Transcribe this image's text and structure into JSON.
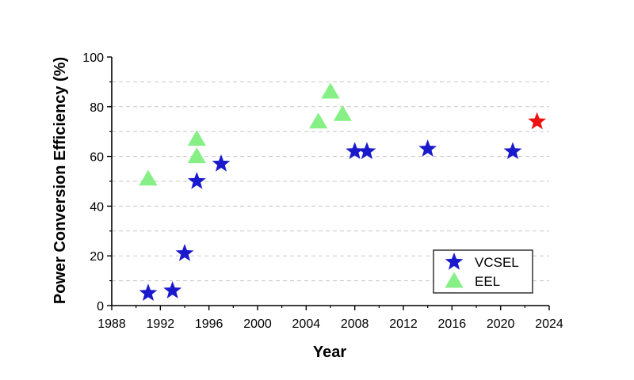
{
  "chart_data": {
    "type": "scatter",
    "title": "",
    "xlabel": "Year",
    "ylabel": "Power Conversion Efficiency (%)",
    "xlim": [
      1988,
      2024
    ],
    "ylim": [
      0,
      100
    ],
    "x_ticks": [
      "1988",
      "1992",
      "1996",
      "2000",
      "2004",
      "2008",
      "2012",
      "2016",
      "2020",
      "2024"
    ],
    "y_ticks": [
      "0",
      "20",
      "40",
      "60",
      "80",
      "100"
    ],
    "grid": "horizontal dashed",
    "legend_position": "bottom-right",
    "series": [
      {
        "name": "VCSEL",
        "marker": "star",
        "color": "#1a1acc",
        "points": [
          {
            "x": 1991,
            "y": 5
          },
          {
            "x": 1993,
            "y": 6
          },
          {
            "x": 1994,
            "y": 21
          },
          {
            "x": 1995,
            "y": 50
          },
          {
            "x": 1997,
            "y": 57
          },
          {
            "x": 2008,
            "y": 62
          },
          {
            "x": 2009,
            "y": 62
          },
          {
            "x": 2014,
            "y": 63
          },
          {
            "x": 2021,
            "y": 62
          }
        ]
      },
      {
        "name": "EEL",
        "marker": "triangle",
        "color": "#86f086",
        "points": [
          {
            "x": 1991,
            "y": 51
          },
          {
            "x": 1995,
            "y": 67
          },
          {
            "x": 1995,
            "y": 60
          },
          {
            "x": 2005,
            "y": 74
          },
          {
            "x": 2006,
            "y": 86
          },
          {
            "x": 2007,
            "y": 77
          }
        ]
      }
    ],
    "highlight_points": [
      {
        "x": 2023,
        "y": 74,
        "marker": "star",
        "color": "#ee1111"
      }
    ]
  }
}
